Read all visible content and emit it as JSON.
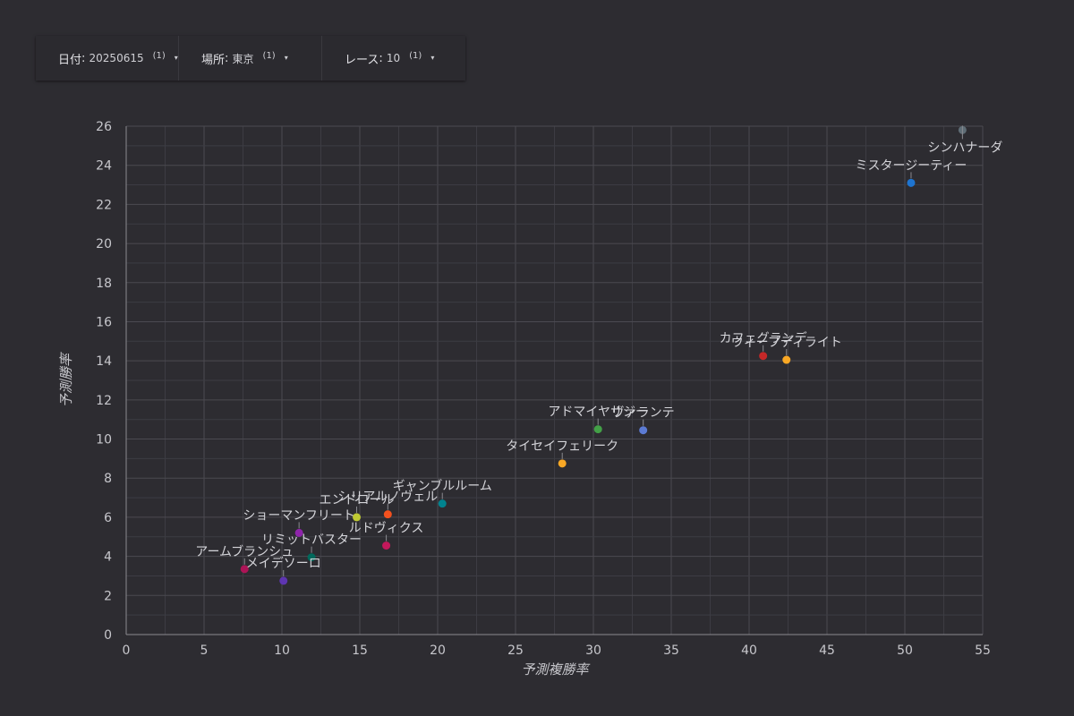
{
  "filters": [
    {
      "label": "日付",
      "value": "20250615",
      "count": "(1)",
      "caret": "▾"
    },
    {
      "label": "場所",
      "value": "東京",
      "count": "(1)",
      "caret": "▾"
    },
    {
      "label": "レース",
      "value": "10",
      "count": "(1)",
      "caret": "▾"
    }
  ],
  "chart_data": {
    "type": "scatter",
    "xlabel": "予測複勝率",
    "ylabel": "予測勝率",
    "xlim": [
      0,
      55
    ],
    "ylim": [
      0,
      26
    ],
    "xticks": [
      0,
      5,
      10,
      15,
      20,
      25,
      30,
      35,
      40,
      45,
      50,
      55
    ],
    "yticks": [
      0,
      2,
      4,
      6,
      8,
      10,
      12,
      14,
      16,
      18,
      20,
      22,
      24,
      26
    ],
    "grid": true,
    "points": [
      {
        "name": "シンハナーダ",
        "x": 53.7,
        "y": 25.8,
        "color": "#5f6d76"
      },
      {
        "name": "ミスタージーティー",
        "x": 50.4,
        "y": 23.1,
        "color": "#1e74d0"
      },
      {
        "name": "カフェグランデ",
        "x": 40.9,
        "y": 14.25,
        "color": "#c62828"
      },
      {
        "name": "ウィープディライト",
        "x": 42.4,
        "y": 14.05,
        "color": "#f9a825"
      },
      {
        "name": "アドマイヤサジー",
        "x": 30.3,
        "y": 10.5,
        "color": "#43a047"
      },
      {
        "name": "ヴァランテ",
        "x": 33.2,
        "y": 10.45,
        "color": "#5c7bd4"
      },
      {
        "name": "タイセイフェリーク",
        "x": 28.0,
        "y": 8.75,
        "color": "#f9a825"
      },
      {
        "name": "ギャンブルルーム",
        "x": 20.3,
        "y": 6.7,
        "color": "#00838f"
      },
      {
        "name": "シリアルノヴェル",
        "x": 16.8,
        "y": 6.15,
        "color": "#f4511e"
      },
      {
        "name": "エンドロール",
        "x": 14.8,
        "y": 6.0,
        "color": "#c0ca33"
      },
      {
        "name": "ショーマンフリート",
        "x": 11.1,
        "y": 5.2,
        "color": "#8e24aa"
      },
      {
        "name": "ルドヴィクス",
        "x": 16.7,
        "y": 4.55,
        "color": "#c2185b"
      },
      {
        "name": "リミットバスター",
        "x": 11.9,
        "y": 3.95,
        "color": "#00695c"
      },
      {
        "name": "アームブランシュ",
        "x": 7.6,
        "y": 3.35,
        "color": "#ad1457"
      },
      {
        "name": "メイデソーロ",
        "x": 10.1,
        "y": 2.75,
        "color": "#5e35b1"
      }
    ]
  }
}
